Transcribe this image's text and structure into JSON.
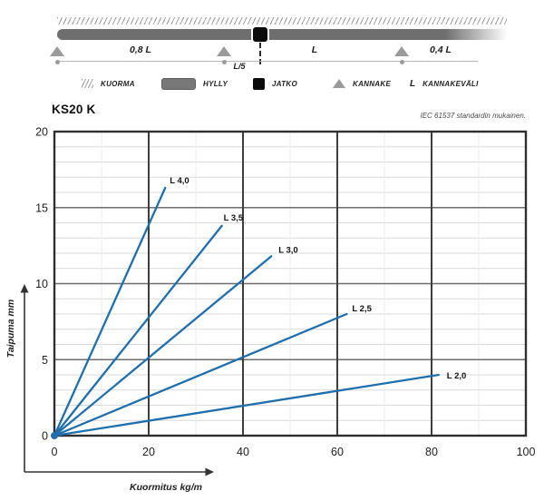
{
  "diagram": {
    "labels": {
      "span_left": "0,8 L",
      "offset": "L/5",
      "span_right": "L",
      "overhang": "0,4 L"
    },
    "legend": [
      {
        "id": "kuorma",
        "label": "KUORMA"
      },
      {
        "id": "hylly",
        "label": "HYLLY"
      },
      {
        "id": "jatko",
        "label": "JATKO"
      },
      {
        "id": "kannake",
        "label": "KANNAKE"
      },
      {
        "id": "kannakevali",
        "symbol_text": "L",
        "label": "KANNAKEVÄLI"
      }
    ],
    "colors": {
      "bar": "#6e6e6e",
      "triangle": "#9a9a9a",
      "joint": "#0b0b0b",
      "hatch": "#9c9c9c"
    }
  },
  "chart_data": {
    "type": "line",
    "title": "KS20 K",
    "note": "IEC 61537 standardin mukainen.",
    "xlabel": "Kuormitus kg/m",
    "ylabel": "Taipuma mm",
    "xlim": [
      0,
      100
    ],
    "ylim": [
      0,
      20
    ],
    "x_ticks": [
      0,
      20,
      40,
      60,
      80,
      100
    ],
    "y_ticks": [
      0,
      5,
      10,
      15,
      20
    ],
    "x_minor_step": 10,
    "y_minor_step": 1,
    "grid": true,
    "legend_position": "inline-labels",
    "line_color": "#1f6fad",
    "colors": {
      "grid_minor_h": "#d9d9d9",
      "grid_minor_v": "#ebebeb",
      "grid_major_h": "#6e6e6e",
      "grid_major_v": "#3d3d3d",
      "border": "#2f2f2f",
      "axis_arrow": "#333333"
    },
    "series": [
      {
        "name": "L 4,0",
        "points": [
          [
            0,
            0
          ],
          [
            23.5,
            16.3
          ]
        ],
        "label_dx": 5,
        "label_dy": -5
      },
      {
        "name": "L 3,5",
        "points": [
          [
            0,
            0
          ],
          [
            35.5,
            13.8
          ]
        ],
        "label_dx": 2,
        "label_dy": -6
      },
      {
        "name": "L 3,0",
        "points": [
          [
            0,
            0
          ],
          [
            46,
            11.8
          ]
        ],
        "label_dx": 8,
        "label_dy": -4
      },
      {
        "name": "L 2,5",
        "points": [
          [
            0,
            0
          ],
          [
            62,
            8.0
          ]
        ],
        "label_dx": 6,
        "label_dy": -3
      },
      {
        "name": "L 2,0",
        "points": [
          [
            0,
            0
          ],
          [
            81.5,
            4.0
          ]
        ],
        "label_dx": 9,
        "label_dy": 4
      }
    ]
  }
}
